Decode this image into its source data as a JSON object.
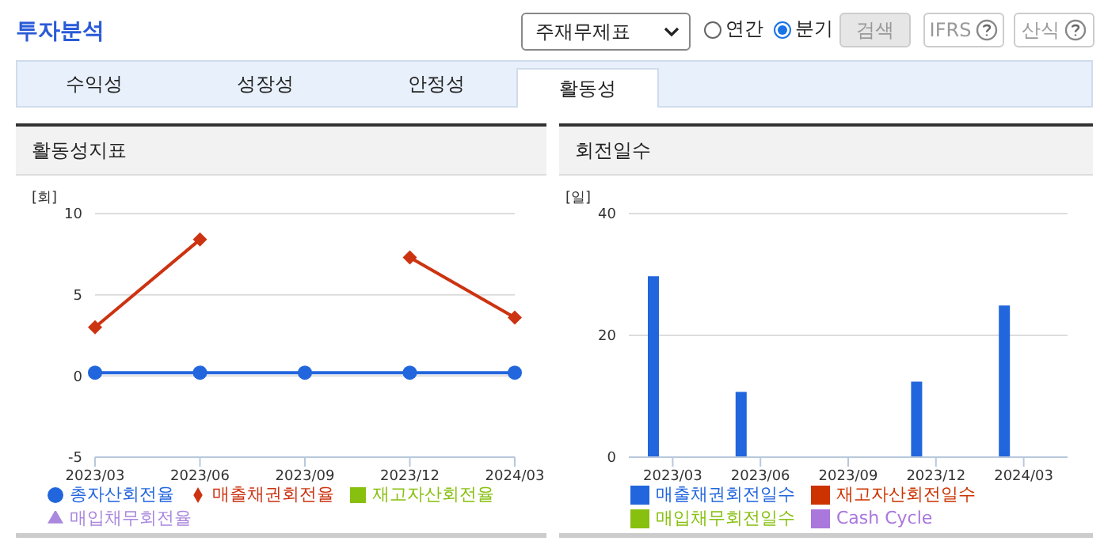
{
  "chart_data": [
    {
      "type": "line",
      "title": "활동성지표",
      "ylabel": "[회]",
      "categories": [
        "2023/03",
        "2023/06",
        "2023/09",
        "2023/12",
        "2024/03"
      ],
      "series": [
        {
          "name": "총자산회전율",
          "color": "#2266dd",
          "marker": "circle",
          "values": [
            0.2,
            0.2,
            0.2,
            0.2,
            0.2
          ]
        },
        {
          "name": "매출채권회전율",
          "color": "#cc3311",
          "marker": "diamond",
          "values": [
            3.0,
            8.4,
            null,
            7.3,
            3.6
          ]
        },
        {
          "name": "재고자산회전율",
          "color": "#88c010",
          "marker": "square",
          "values": [
            null,
            null,
            null,
            null,
            null
          ]
        },
        {
          "name": "매입채무회전율",
          "color": "#aa88dd",
          "marker": "triangle",
          "values": [
            null,
            null,
            null,
            null,
            null
          ]
        }
      ],
      "ylim": [
        -5,
        10
      ],
      "yticks": [
        -5,
        0,
        5,
        10
      ],
      "grid": "y",
      "legend": "bottom",
      "annotations": [
        "투자분석",
        "주재무제표",
        "연간",
        "분기",
        "검색",
        "IFRS",
        "산식",
        "수익성",
        "성장성",
        "안정성",
        "활동성"
      ]
    },
    {
      "type": "bar",
      "title": "회전일수",
      "ylabel": "[일]",
      "categories": [
        "2023/03",
        "2023/06",
        "2023/09",
        "2023/12",
        "2024/03"
      ],
      "series": [
        {
          "name": "매출채권회전일수",
          "color": "#2266dd",
          "values": [
            29.7,
            10.7,
            null,
            12.4,
            24.9
          ]
        },
        {
          "name": "재고자산회전일수",
          "color": "#cc3300",
          "values": [
            null,
            null,
            null,
            null,
            null
          ]
        },
        {
          "name": "매입채무회전일수",
          "color": "#88c010",
          "values": [
            null,
            null,
            null,
            null,
            null
          ]
        },
        {
          "name": "Cash Cycle",
          "color": "#aa77dd",
          "values": [
            null,
            null,
            null,
            null,
            null
          ]
        }
      ],
      "ylim": [
        0,
        40
      ],
      "yticks": [
        0,
        20,
        40
      ],
      "grid": "y",
      "legend": "bottom"
    }
  ]
}
